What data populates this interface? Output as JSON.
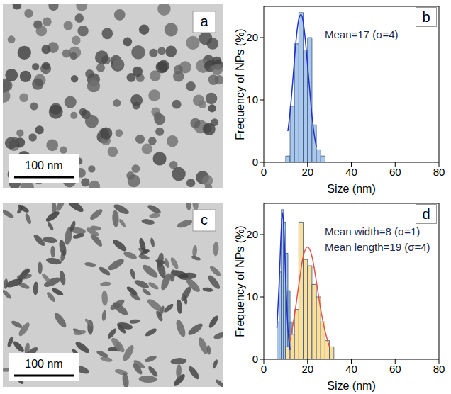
{
  "images": [
    {
      "panel_label": "a",
      "scale_bar": "100 nm"
    },
    {
      "panel_label": "c",
      "scale_bar": "100 nm"
    }
  ],
  "chart_data": [
    {
      "type": "histogram",
      "panel_label": "b",
      "x_label": "Size (nm)",
      "y_label": "Frequency of NPs (%)",
      "xlim": [
        0,
        80
      ],
      "xticks": [
        0,
        20,
        40,
        60,
        80
      ],
      "ylim": [
        0,
        25
      ],
      "yticks": [
        0,
        10,
        20
      ],
      "annotations": [
        "Mean=17 (σ=4)"
      ],
      "series": [
        {
          "color": "#a9c8ec",
          "bins": [
            10,
            12,
            14,
            16,
            18,
            20,
            22,
            24,
            26,
            28
          ],
          "values": [
            1,
            9,
            19,
            24,
            18,
            20,
            6,
            2,
            1
          ],
          "fit": {
            "color": "#1f2fd0",
            "x": [
              11,
              12,
              13,
              14,
              15,
              16,
              17,
              18,
              19,
              20,
              21,
              22,
              23,
              24
            ],
            "values": [
              5,
              8,
              12,
              16.5,
              20.5,
              23,
              23.7,
              22.5,
              19.5,
              15.5,
              11.5,
              7.5,
              4.5,
              2.5
            ]
          }
        }
      ]
    },
    {
      "type": "histogram",
      "panel_label": "d",
      "x_label": "Size (nm)",
      "y_label": "Frequency of NPs (%)",
      "xlim": [
        0,
        80
      ],
      "xticks": [
        0,
        20,
        40,
        60,
        80
      ],
      "ylim": [
        0,
        25
      ],
      "yticks": [
        0,
        10,
        20
      ],
      "annotations": [
        "Mean width=8 (σ=1)",
        "Mean length=19 (σ=4)"
      ],
      "series": [
        {
          "color": "#a9c8ec",
          "bins": [
            6,
            7,
            8,
            9,
            10,
            11,
            12,
            13
          ],
          "values": [
            6,
            14,
            24,
            22,
            17,
            11,
            6
          ],
          "fit": {
            "color": "#1f2fd0",
            "x": [
              6,
              7,
              8,
              8.5,
              9,
              10,
              11,
              12
            ],
            "values": [
              5,
              12,
              21,
              23.5,
              22,
              13,
              5,
              1.5
            ]
          }
        },
        {
          "color": "#fbdf9b",
          "bins": [
            10,
            12,
            14,
            16,
            18,
            20,
            22,
            24,
            26,
            28,
            30,
            32
          ],
          "values": [
            2,
            4,
            8,
            22,
            16,
            15,
            12,
            10,
            6,
            3,
            2
          ],
          "fit": {
            "color": "#e0524a",
            "x": [
              12,
              14,
              16,
              18,
              20,
              22,
              24,
              26,
              28,
              30
            ],
            "values": [
              3,
              7,
              12,
              16.5,
              18,
              16.5,
              12.5,
              8,
              4.5,
              2
            ]
          }
        }
      ]
    }
  ]
}
